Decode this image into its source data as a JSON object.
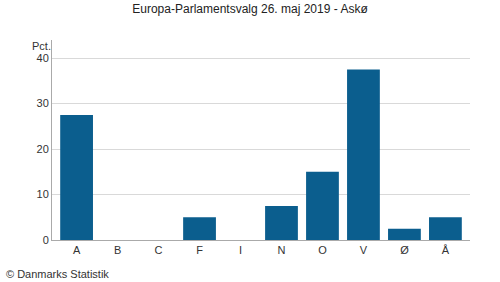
{
  "chart_data": {
    "type": "bar",
    "title": "Europa-Parlamentsvalg 26. maj 2019 - Askø",
    "y_label": "Pct.",
    "source": "© Danmarks Statistik",
    "categories": [
      "A",
      "B",
      "C",
      "F",
      "I",
      "N",
      "O",
      "V",
      "Ø",
      "Å"
    ],
    "values": [
      27.5,
      0,
      0,
      5,
      0,
      7.5,
      15,
      37.5,
      2.5,
      5
    ],
    "color": "#0b5e8e",
    "ylim": [
      0,
      44
    ],
    "yticks": [
      0,
      10,
      20,
      30,
      40
    ],
    "grid": true
  }
}
